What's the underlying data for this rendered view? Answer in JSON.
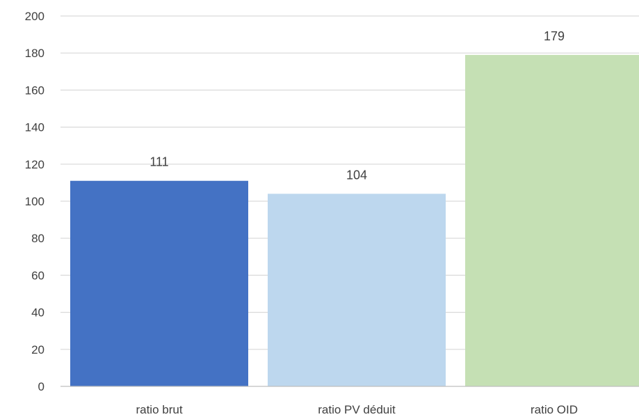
{
  "chart_data": {
    "type": "bar",
    "title": "",
    "xlabel": "",
    "ylabel": "",
    "categories": [
      "ratio brut",
      "ratio PV déduit",
      "ratio OID"
    ],
    "values": [
      111,
      104,
      179
    ],
    "data_labels": [
      "111",
      "104",
      "179"
    ],
    "colors": [
      "#4472c4",
      "#bdd7ee",
      "#c5e0b4"
    ],
    "ylim": [
      0,
      200
    ],
    "yticks": [
      0,
      20,
      40,
      60,
      80,
      100,
      120,
      140,
      160,
      180,
      200
    ],
    "grid": true,
    "legend": "none"
  }
}
